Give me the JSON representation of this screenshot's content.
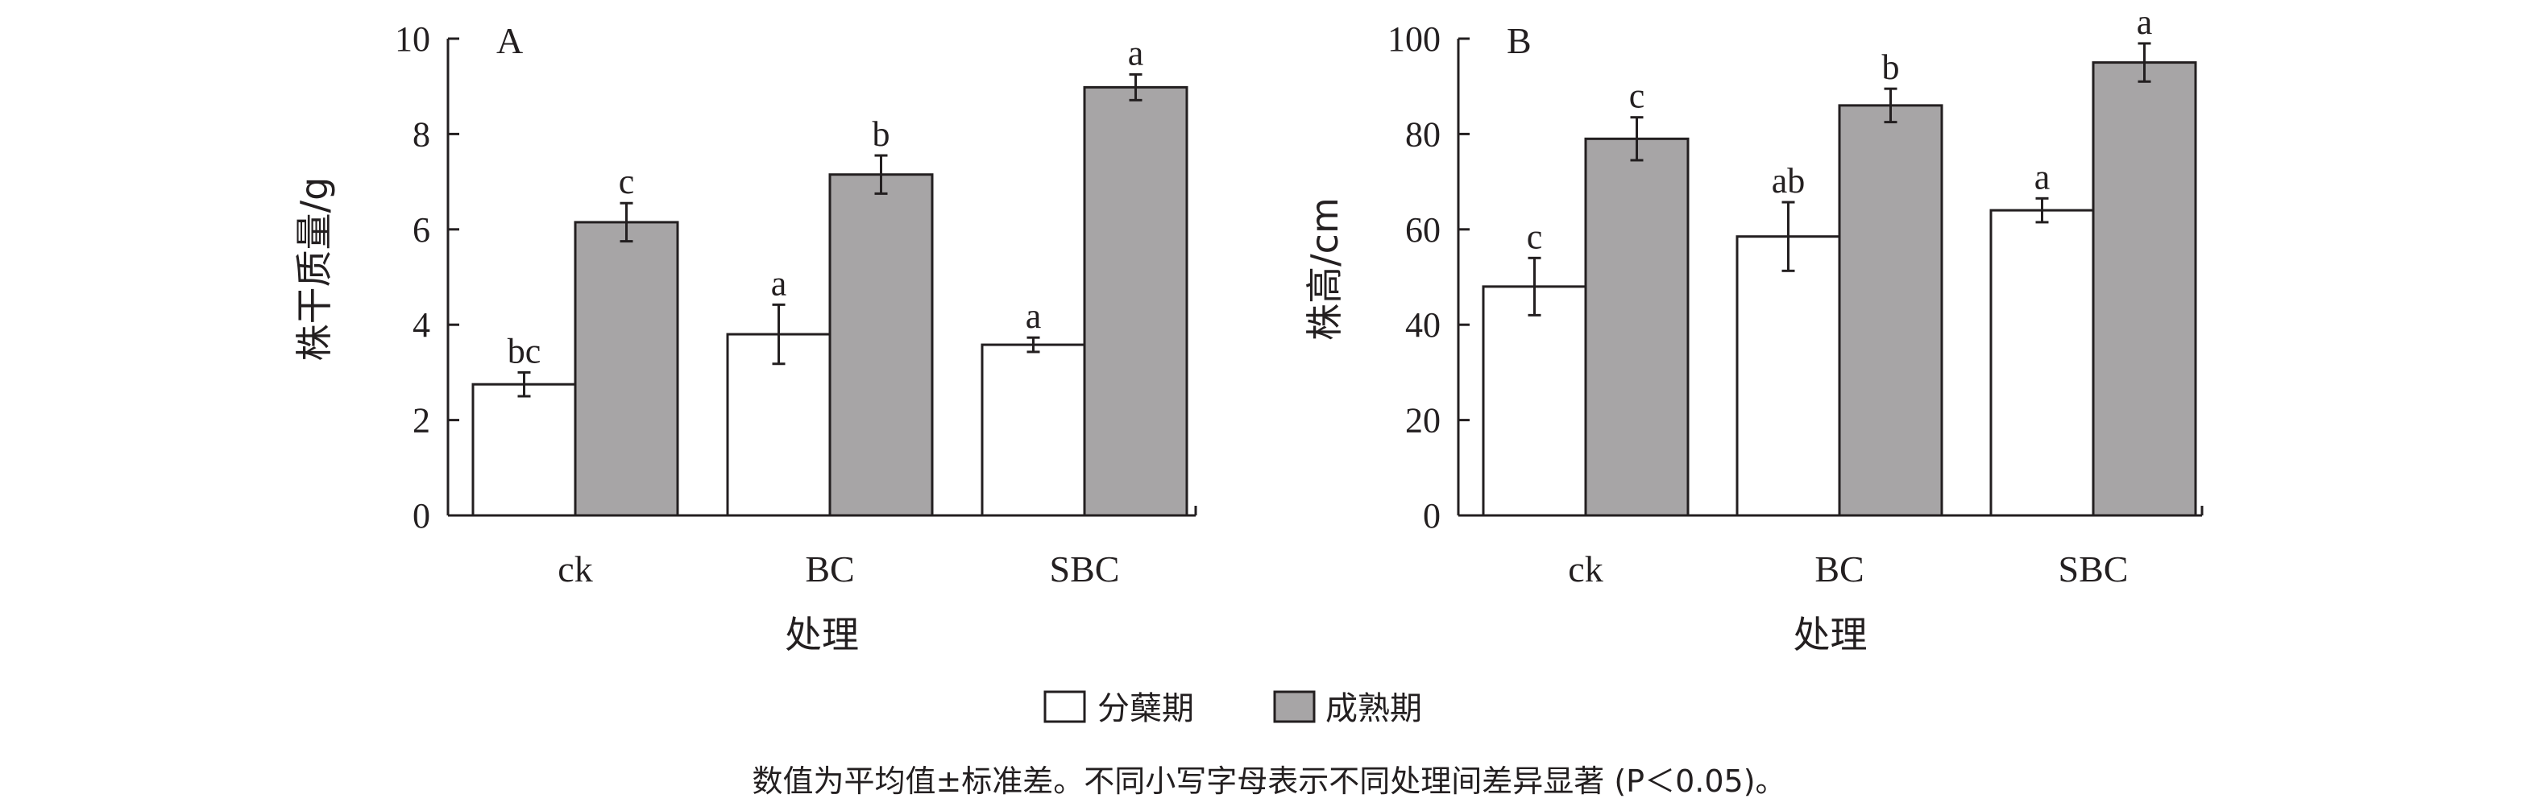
{
  "legend": [
    {
      "name": "分蘖期",
      "color": "#ffffff"
    },
    {
      "name": "成熟期",
      "color": "#a7a5a6"
    }
  ],
  "caption": "数值为平均值±标准差。不同小写字母表示不同处理间差异显著 (P＜0.05)。",
  "colors": {
    "axis": "#231f20",
    "tillering": "#ffffff",
    "maturity": "#a7a5a6"
  },
  "chart_data": [
    {
      "type": "bar",
      "panel_label": "A",
      "ylabel": "株干质量/g",
      "xlabel": "处理",
      "categories": [
        "ck",
        "BC",
        "SBC"
      ],
      "ylim": [
        0,
        10
      ],
      "yticks": [
        0,
        2,
        4,
        6,
        8,
        10
      ],
      "grid": false,
      "series": [
        {
          "name": "分蘖期",
          "values": [
            2.75,
            3.8,
            3.58
          ],
          "errors": [
            0.25,
            0.62,
            0.15
          ],
          "labels": [
            "bc",
            "a",
            "a"
          ]
        },
        {
          "name": "成熟期",
          "values": [
            6.15,
            7.15,
            8.98
          ],
          "errors": [
            0.4,
            0.4,
            0.27
          ],
          "labels": [
            "c",
            "b",
            "a"
          ]
        }
      ]
    },
    {
      "type": "bar",
      "panel_label": "B",
      "ylabel": "株高/cm",
      "xlabel": "处理",
      "categories": [
        "ck",
        "BC",
        "SBC"
      ],
      "ylim": [
        0,
        100
      ],
      "yticks": [
        0,
        20,
        40,
        60,
        80,
        100
      ],
      "grid": false,
      "series": [
        {
          "name": "分蘖期",
          "values": [
            48,
            58.5,
            64
          ],
          "errors": [
            6,
            7.2,
            2.5
          ],
          "labels": [
            "c",
            "ab",
            "a"
          ]
        },
        {
          "name": "成熟期",
          "values": [
            79,
            86,
            95
          ],
          "errors": [
            4.5,
            3.5,
            4
          ],
          "labels": [
            "c",
            "b",
            "a"
          ]
        }
      ]
    }
  ]
}
